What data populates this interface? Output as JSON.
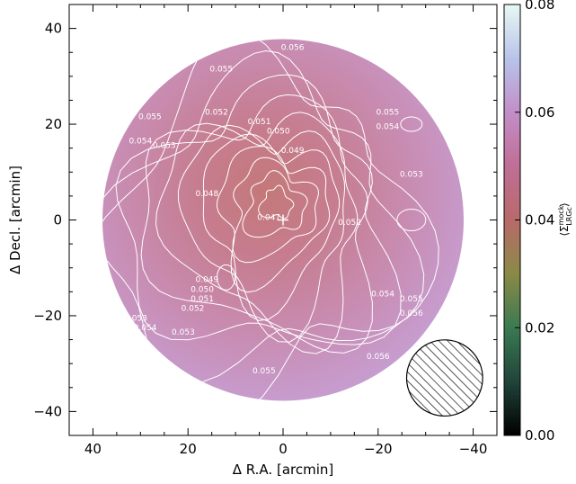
{
  "chart_data": {
    "type": "heatmap",
    "xlabel": "Δ R.A. [arcmin]",
    "ylabel": "Δ Decl. [arcmin]",
    "xlim": [
      45,
      -45
    ],
    "ylim": [
      -45,
      45
    ],
    "x_ticks": [
      40,
      20,
      0,
      -20,
      -40
    ],
    "x_tick_labels": [
      "40",
      "20",
      "0",
      "−20",
      "−40"
    ],
    "y_ticks": [
      40,
      20,
      0,
      -20,
      -40
    ],
    "y_tick_labels": [
      "40",
      "20",
      "0",
      "−20",
      "−40"
    ],
    "field_radius_arcmin": 38,
    "beam_center": [
      -34,
      -33
    ],
    "beam_radius_arcmin": 8,
    "colorbar": {
      "label_main": "⟨Σ",
      "label_sup": "mock",
      "label_sub": "LRGc",
      "label_end": "⟩",
      "range": [
        0.0,
        0.08
      ],
      "ticks": [
        0.0,
        0.02,
        0.04,
        0.06,
        0.08
      ],
      "tick_labels": [
        "0.00",
        "0.02",
        "0.04",
        "0.06",
        "0.08"
      ],
      "colors": [
        "#000000",
        "#20443a",
        "#3a7a52",
        "#8a8a46",
        "#b86a6a",
        "#c06e96",
        "#c28ec8",
        "#b8c4ea",
        "#e8f8f4"
      ]
    },
    "contour_labels": [
      {
        "text": "0.056",
        "x": -2,
        "y": 35.5
      },
      {
        "text": "0.055",
        "x": 13,
        "y": 31
      },
      {
        "text": "0.055",
        "x": 28,
        "y": 21
      },
      {
        "text": "0.055",
        "x": -22,
        "y": 22
      },
      {
        "text": "0.054",
        "x": -22,
        "y": 19
      },
      {
        "text": "0.054",
        "x": 30,
        "y": 16
      },
      {
        "text": "0.053",
        "x": 25,
        "y": 15
      },
      {
        "text": "0.052",
        "x": 14,
        "y": 22
      },
      {
        "text": "0.051",
        "x": 5,
        "y": 20
      },
      {
        "text": "0.050",
        "x": 1,
        "y": 18
      },
      {
        "text": "0.049",
        "x": -2,
        "y": 14
      },
      {
        "text": "0.048",
        "x": 16,
        "y": 5
      },
      {
        "text": "0.047",
        "x": 3,
        "y": 0
      },
      {
        "text": "0.052",
        "x": -14,
        "y": -1
      },
      {
        "text": "0.053",
        "x": -27,
        "y": 9
      },
      {
        "text": "0.054",
        "x": -21,
        "y": -16
      },
      {
        "text": "0.055",
        "x": -27,
        "y": -17
      },
      {
        "text": "0.056",
        "x": -27,
        "y": -20
      },
      {
        "text": "0.049",
        "x": 16,
        "y": -13
      },
      {
        "text": "0.050",
        "x": 17,
        "y": -15
      },
      {
        "text": "0.051",
        "x": 17,
        "y": -17
      },
      {
        "text": "0.052",
        "x": 19,
        "y": -19
      },
      {
        "text": "0.053",
        "x": 21,
        "y": -24
      },
      {
        "text": "0.053",
        "x": 31,
        "y": -21
      },
      {
        "text": "0.054",
        "x": 29,
        "y": -23
      },
      {
        "text": "0.055",
        "x": 4,
        "y": -32
      },
      {
        "text": "0.056",
        "x": -20,
        "y": -29
      }
    ],
    "peak_marker": [
      0,
      0
    ]
  }
}
